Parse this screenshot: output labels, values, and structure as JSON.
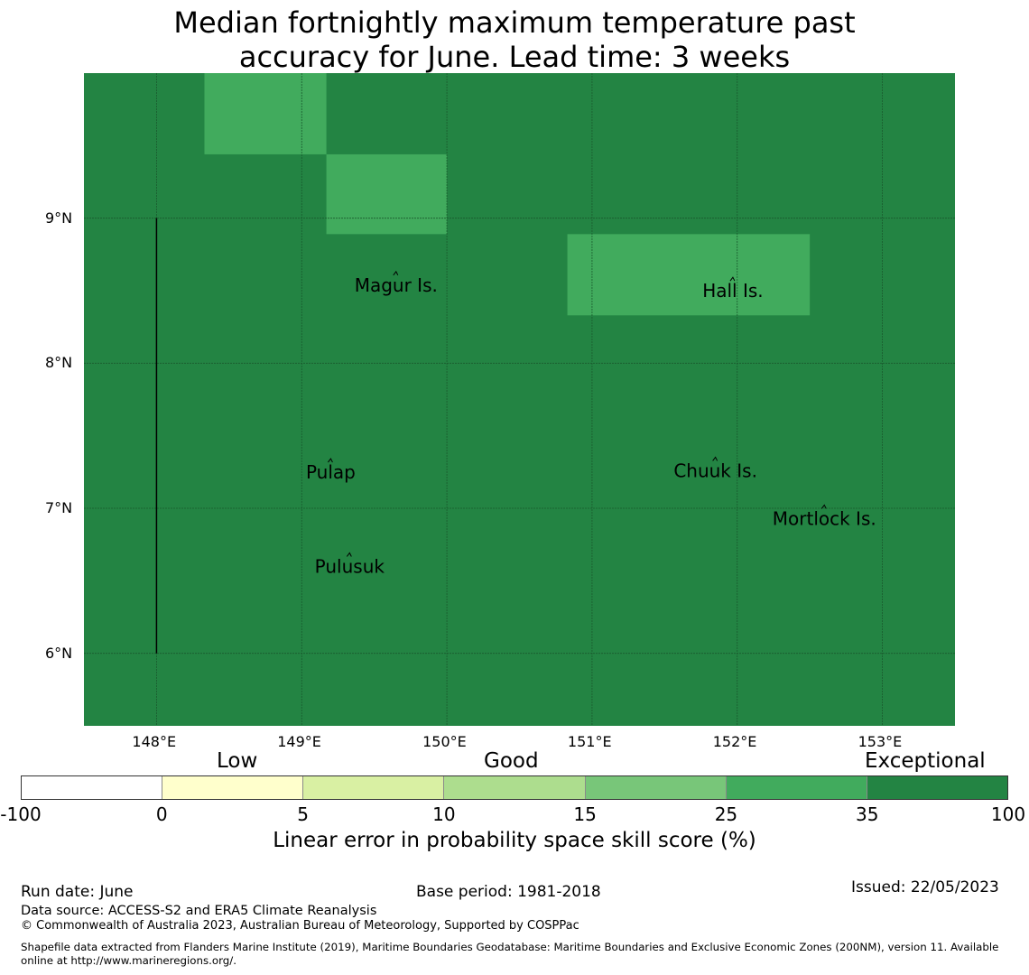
{
  "title": {
    "line1": "Median fortnightly maximum temperature past",
    "line2": "accuracy for June. Lead time: 3 weeks"
  },
  "map": {
    "lon_range": [
      147.5,
      153.5
    ],
    "lat_range": [
      5.5,
      10.0
    ],
    "x_ticks": [
      "148°E",
      "149°E",
      "150°E",
      "151°E",
      "152°E",
      "153°E"
    ],
    "x_tick_values": [
      148,
      149,
      150,
      151,
      152,
      153
    ],
    "y_ticks": [
      "9°N",
      "8°N",
      "7°N",
      "6°N"
    ],
    "y_tick_values": [
      9,
      8,
      7,
      6
    ],
    "background_category": "Exceptional",
    "grid": true,
    "cells": [
      {
        "lon_min": 148.33,
        "lon_max": 149.17,
        "lat_min": 9.44,
        "lat_max": 10.0,
        "score_band": "25 to 35"
      },
      {
        "lon_min": 149.17,
        "lon_max": 150.0,
        "lat_min": 8.89,
        "lat_max": 9.44,
        "score_band": "25 to 35"
      },
      {
        "lon_min": 150.83,
        "lon_max": 152.5,
        "lat_min": 8.33,
        "lat_max": 8.89,
        "score_band": "25 to 35"
      }
    ],
    "boundary_line": {
      "lon": 148.0,
      "lat_from": 6.0,
      "lat_to": 9.0
    },
    "islands": [
      {
        "name": "Magur Is.",
        "lon": 149.65,
        "lat": 8.52
      },
      {
        "name": "Hall Is.",
        "lon": 151.97,
        "lat": 8.48
      },
      {
        "name": "Pulap",
        "lon": 149.2,
        "lat": 7.23
      },
      {
        "name": "Chuuk Is.",
        "lon": 151.85,
        "lat": 7.24
      },
      {
        "name": "Mortlock Is.",
        "lon": 152.6,
        "lat": 6.91
      },
      {
        "name": "Pulusuk",
        "lon": 149.33,
        "lat": 6.58
      }
    ]
  },
  "colorbar": {
    "categories": [
      "Low",
      "Good",
      "Exceptional"
    ],
    "ticks": [
      "-100",
      "0",
      "5",
      "10",
      "15",
      "25",
      "35",
      "100"
    ],
    "colors": [
      "#ffffff",
      "#ffffcc",
      "#d9f0a3",
      "#addd8e",
      "#78c679",
      "#41ab5d",
      "#238443"
    ],
    "label": "Linear error in probability space skill score (%)"
  },
  "footer": {
    "run_date": "Run date: June",
    "base_period": "Base period: 1981-2018",
    "issued": "Issued: 22/05/2023",
    "data_source": "Data source: ACCESS-S2 and ERA5 Climate Reanalysis",
    "copyright": "© Commonwealth of Australia 2023, Australian Bureau of Meteorology, Supported by COSPPac",
    "shapefile_line1": "Shapefile data extracted from Flanders Marine Institute (2019), Maritime Boundaries Geodatabase: Maritime Boundaries and Exclusive Economic Zones (200NM), version 11. Available",
    "shapefile_line2": "online at http://www.marineregions.org/."
  },
  "colors": {
    "exceptional": "#238443",
    "very_good": "#41ab5d",
    "grid": "#1a5a2e"
  }
}
